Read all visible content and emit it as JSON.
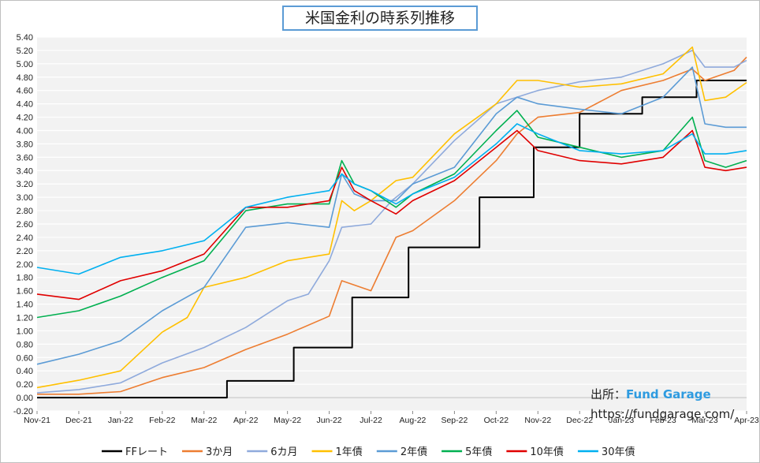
{
  "title": "米国金利の時系列推移",
  "source": {
    "label": "出所：",
    "brand": "Fund Garage",
    "url": "https://fundgarage.com/"
  },
  "chart_data": {
    "type": "line",
    "title": "米国金利の時系列推移",
    "xlabel": "",
    "ylabel": "",
    "ylim": [
      -0.2,
      5.4
    ],
    "ytick_step": 0.2,
    "grid": true,
    "legend_position": "bottom",
    "x_tick_labels": [
      "Nov-21",
      "Dec-21",
      "Jan-22",
      "Feb-22",
      "Mar-22",
      "Apr-22",
      "May-22",
      "Jun-22",
      "Jul-22",
      "Aug-22",
      "Sep-22",
      "Oct-22",
      "Nov-22",
      "Dec-22",
      "Jan-23",
      "Feb-23",
      "Mar-23",
      "Apr-23"
    ],
    "x_positions_months": [
      0,
      1,
      2,
      3,
      4,
      5,
      6,
      7,
      8,
      9,
      10,
      11,
      12,
      13,
      14,
      15,
      16,
      17
    ],
    "xlim_months": [
      0,
      17
    ],
    "series": [
      {
        "name": "FFレート",
        "color": "#000000",
        "width": 2,
        "step": true,
        "points": [
          [
            0,
            0
          ],
          [
            4.55,
            0
          ],
          [
            4.55,
            0.25
          ],
          [
            6.15,
            0.25
          ],
          [
            6.15,
            0.75
          ],
          [
            7.55,
            0.75
          ],
          [
            7.55,
            1.5
          ],
          [
            8.9,
            1.5
          ],
          [
            8.9,
            2.25
          ],
          [
            10.6,
            2.25
          ],
          [
            10.6,
            3.0
          ],
          [
            11.9,
            3.0
          ],
          [
            11.9,
            3.75
          ],
          [
            13.0,
            3.75
          ],
          [
            13.0,
            4.25
          ],
          [
            14.5,
            4.25
          ],
          [
            14.5,
            4.5
          ],
          [
            15.8,
            4.5
          ],
          [
            15.8,
            4.75
          ],
          [
            17,
            4.75
          ]
        ]
      },
      {
        "name": "3か月",
        "color": "#ed7d31",
        "width": 1.6,
        "step": false,
        "points": [
          [
            0,
            0.05
          ],
          [
            1,
            0.05
          ],
          [
            2,
            0.09
          ],
          [
            3,
            0.3
          ],
          [
            4,
            0.45
          ],
          [
            5,
            0.72
          ],
          [
            6,
            0.95
          ],
          [
            7,
            1.22
          ],
          [
            7.3,
            1.75
          ],
          [
            8,
            1.6
          ],
          [
            8.6,
            2.4
          ],
          [
            9,
            2.5
          ],
          [
            10,
            2.95
          ],
          [
            11,
            3.55
          ],
          [
            11.5,
            3.95
          ],
          [
            12,
            4.2
          ],
          [
            13,
            4.27
          ],
          [
            14,
            4.6
          ],
          [
            15,
            4.75
          ],
          [
            15.7,
            4.92
          ],
          [
            16,
            4.75
          ],
          [
            16.7,
            4.9
          ],
          [
            17,
            5.1
          ]
        ]
      },
      {
        "name": "6カ月",
        "color": "#8faadc",
        "width": 1.6,
        "step": false,
        "points": [
          [
            0,
            0.07
          ],
          [
            1,
            0.12
          ],
          [
            2,
            0.22
          ],
          [
            3,
            0.52
          ],
          [
            4,
            0.75
          ],
          [
            5,
            1.05
          ],
          [
            6,
            1.45
          ],
          [
            6.5,
            1.55
          ],
          [
            7,
            2.05
          ],
          [
            7.3,
            2.55
          ],
          [
            8,
            2.6
          ],
          [
            8.5,
            2.95
          ],
          [
            9,
            3.2
          ],
          [
            10,
            3.85
          ],
          [
            11,
            4.4
          ],
          [
            12,
            4.6
          ],
          [
            13,
            4.73
          ],
          [
            14,
            4.8
          ],
          [
            15,
            5.0
          ],
          [
            15.7,
            5.2
          ],
          [
            16,
            4.95
          ],
          [
            16.7,
            4.95
          ],
          [
            17,
            5.05
          ]
        ]
      },
      {
        "name": "1年債",
        "color": "#ffc000",
        "width": 1.6,
        "step": false,
        "points": [
          [
            0,
            0.15
          ],
          [
            1,
            0.26
          ],
          [
            2,
            0.4
          ],
          [
            3,
            0.98
          ],
          [
            3.6,
            1.2
          ],
          [
            4,
            1.65
          ],
          [
            5,
            1.8
          ],
          [
            6,
            2.05
          ],
          [
            7,
            2.15
          ],
          [
            7.3,
            2.95
          ],
          [
            7.6,
            2.8
          ],
          [
            8,
            2.95
          ],
          [
            8.6,
            3.25
          ],
          [
            9,
            3.3
          ],
          [
            10,
            3.95
          ],
          [
            11,
            4.4
          ],
          [
            11.5,
            4.75
          ],
          [
            12,
            4.75
          ],
          [
            13,
            4.65
          ],
          [
            14,
            4.7
          ],
          [
            15,
            4.85
          ],
          [
            15.7,
            5.25
          ],
          [
            16,
            4.45
          ],
          [
            16.5,
            4.5
          ],
          [
            17,
            4.72
          ]
        ]
      },
      {
        "name": "2年債",
        "color": "#5b9bd5",
        "width": 1.6,
        "step": false,
        "points": [
          [
            0,
            0.5
          ],
          [
            1,
            0.65
          ],
          [
            2,
            0.85
          ],
          [
            3,
            1.3
          ],
          [
            4,
            1.65
          ],
          [
            5,
            2.55
          ],
          [
            6,
            2.62
          ],
          [
            7,
            2.55
          ],
          [
            7.3,
            3.35
          ],
          [
            7.6,
            3.05
          ],
          [
            8,
            2.95
          ],
          [
            8.6,
            2.95
          ],
          [
            9,
            3.2
          ],
          [
            10,
            3.45
          ],
          [
            11,
            4.25
          ],
          [
            11.5,
            4.5
          ],
          [
            12,
            4.4
          ],
          [
            13,
            4.32
          ],
          [
            14,
            4.25
          ],
          [
            15,
            4.5
          ],
          [
            15.7,
            4.95
          ],
          [
            16,
            4.1
          ],
          [
            16.5,
            4.05
          ],
          [
            17,
            4.05
          ]
        ]
      },
      {
        "name": "5年債",
        "color": "#00b050",
        "width": 1.6,
        "step": false,
        "points": [
          [
            0,
            1.2
          ],
          [
            1,
            1.3
          ],
          [
            2,
            1.52
          ],
          [
            3,
            1.8
          ],
          [
            4,
            2.05
          ],
          [
            5,
            2.8
          ],
          [
            6,
            2.9
          ],
          [
            7,
            2.9
          ],
          [
            7.3,
            3.55
          ],
          [
            7.6,
            3.2
          ],
          [
            8,
            3.1
          ],
          [
            8.6,
            2.85
          ],
          [
            9,
            3.05
          ],
          [
            10,
            3.35
          ],
          [
            11,
            4.0
          ],
          [
            11.5,
            4.3
          ],
          [
            12,
            3.9
          ],
          [
            13,
            3.75
          ],
          [
            14,
            3.6
          ],
          [
            15,
            3.7
          ],
          [
            15.7,
            4.2
          ],
          [
            16,
            3.55
          ],
          [
            16.5,
            3.45
          ],
          [
            17,
            3.55
          ]
        ]
      },
      {
        "name": "10年債",
        "color": "#e00000",
        "width": 1.6,
        "step": false,
        "points": [
          [
            0,
            1.55
          ],
          [
            1,
            1.47
          ],
          [
            2,
            1.75
          ],
          [
            3,
            1.9
          ],
          [
            4,
            2.15
          ],
          [
            5,
            2.85
          ],
          [
            6,
            2.85
          ],
          [
            7,
            2.95
          ],
          [
            7.3,
            3.45
          ],
          [
            7.6,
            3.1
          ],
          [
            8,
            2.95
          ],
          [
            8.6,
            2.75
          ],
          [
            9,
            2.95
          ],
          [
            10,
            3.25
          ],
          [
            11,
            3.75
          ],
          [
            11.5,
            4.0
          ],
          [
            12,
            3.7
          ],
          [
            13,
            3.55
          ],
          [
            14,
            3.5
          ],
          [
            15,
            3.6
          ],
          [
            15.7,
            4.0
          ],
          [
            16,
            3.45
          ],
          [
            16.5,
            3.4
          ],
          [
            17,
            3.45
          ]
        ]
      },
      {
        "name": "30年債",
        "color": "#00b0f0",
        "width": 1.6,
        "step": false,
        "points": [
          [
            0,
            1.95
          ],
          [
            1,
            1.85
          ],
          [
            2,
            2.1
          ],
          [
            3,
            2.2
          ],
          [
            4,
            2.35
          ],
          [
            5,
            2.85
          ],
          [
            6,
            3.0
          ],
          [
            7,
            3.1
          ],
          [
            7.3,
            3.35
          ],
          [
            7.6,
            3.2
          ],
          [
            8,
            3.1
          ],
          [
            8.6,
            2.9
          ],
          [
            9,
            3.05
          ],
          [
            10,
            3.3
          ],
          [
            11,
            3.8
          ],
          [
            11.5,
            4.1
          ],
          [
            12,
            3.95
          ],
          [
            13,
            3.7
          ],
          [
            14,
            3.65
          ],
          [
            15,
            3.7
          ],
          [
            15.7,
            3.95
          ],
          [
            16,
            3.65
          ],
          [
            16.5,
            3.65
          ],
          [
            17,
            3.7
          ]
        ]
      }
    ]
  }
}
